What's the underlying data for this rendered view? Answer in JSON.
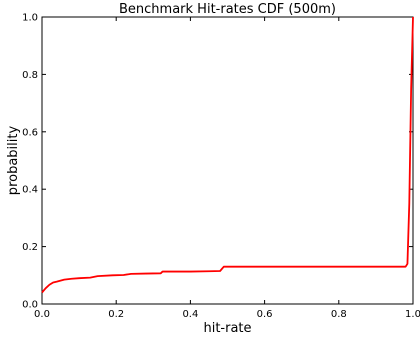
{
  "chart_data": {
    "type": "line",
    "title": "Benchmark Hit-rates CDF (500m)",
    "xlabel": "hit-rate",
    "ylabel": "probability",
    "xlim": [
      0.0,
      1.0
    ],
    "ylim": [
      0.0,
      1.0
    ],
    "xticks": [
      "0.0",
      "0.2",
      "0.4",
      "0.6",
      "0.8",
      "1.0"
    ],
    "yticks": [
      "0.0",
      "0.2",
      "0.4",
      "0.6",
      "0.8",
      "1.0"
    ],
    "grid": false,
    "legend": false,
    "series": [
      {
        "color": "#ff0000",
        "x": [
          0.0,
          0.01,
          0.02,
          0.03,
          0.04,
          0.06,
          0.08,
          0.1,
          0.13,
          0.15,
          0.19,
          0.22,
          0.24,
          0.28,
          0.32,
          0.325,
          0.35,
          0.4,
          0.45,
          0.48,
          0.49,
          0.55,
          0.65,
          0.75,
          0.85,
          0.95,
          0.98,
          0.985,
          0.99,
          0.995,
          1.0
        ],
        "y": [
          0.04,
          0.055,
          0.067,
          0.075,
          0.078,
          0.085,
          0.088,
          0.09,
          0.092,
          0.097,
          0.1,
          0.101,
          0.105,
          0.106,
          0.107,
          0.113,
          0.113,
          0.113,
          0.114,
          0.115,
          0.13,
          0.13,
          0.13,
          0.13,
          0.13,
          0.13,
          0.13,
          0.14,
          0.35,
          0.75,
          1.0
        ]
      }
    ]
  }
}
